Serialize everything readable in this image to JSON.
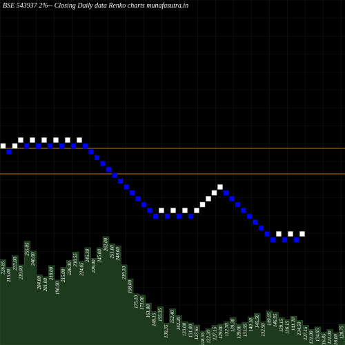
{
  "colors": {
    "background": "#000000",
    "up_brick": "#ffffff",
    "down_brick": "#0000ff",
    "line": "#cc7a00",
    "volume_fill": "#1e3a1e",
    "volume_stroke": "#2f5a2f",
    "label": "#ffffff"
  },
  "chart_data": {
    "type": "renko",
    "title": "BSE 543937 2%-- Closing Daily data Renko charts munafasutra.in",
    "bricks": [
      "U",
      "D",
      "U",
      "U",
      "D",
      "U",
      "D",
      "U",
      "D",
      "U",
      "D",
      "U",
      "D",
      "U",
      "D",
      "D",
      "D",
      "D",
      "D",
      "D",
      "D",
      "D",
      "D",
      "D",
      "D",
      "D",
      "D",
      "U",
      "D",
      "U",
      "D",
      "U",
      "D",
      "U",
      "U",
      "U",
      "U",
      "U",
      "D",
      "D",
      "D",
      "D",
      "D",
      "D",
      "D",
      "D",
      "D",
      "U",
      "D",
      "U",
      "D",
      "U"
    ],
    "horizontal_lines": [
      215,
      252
    ],
    "volume_labels": [
      "226.85",
      "215.00",
      "233.00",
      "219.00",
      "255.05",
      "240.00",
      "204.00",
      "201.00",
      "218.00",
      "196.00",
      "215.00",
      "226.00",
      "238.55",
      "224.65",
      "245.30",
      "229.00",
      "245.00",
      "262.00",
      "251.00",
      "248.00",
      "219.10",
      "198.00",
      "175.10",
      "173.00",
      "161.00",
      "148.15",
      "155.35",
      "130.35",
      "152.40",
      "142.20",
      "133.00",
      "131.00",
      "127.65",
      "118.55",
      "122.20",
      "127.15",
      "129.00",
      "132.70",
      "139.30",
      "129.00",
      "131.95",
      "140.10",
      "145.50",
      "132.50",
      "149.05",
      "146.95",
      "139.15",
      "136.15",
      "141.20",
      "134.50",
      "127.15",
      "121.00",
      "124.85",
      "116.85",
      "121.00",
      "116.00",
      "128.75"
    ]
  }
}
